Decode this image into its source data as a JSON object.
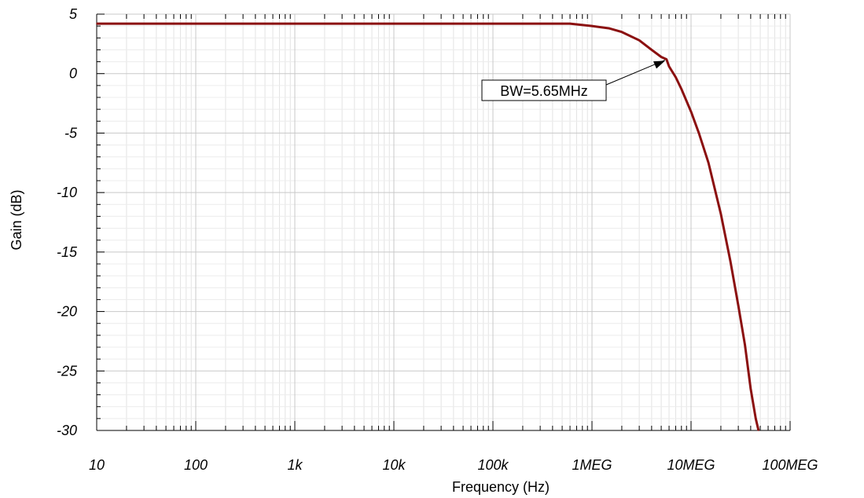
{
  "chart_data": {
    "type": "line",
    "xlabel": "Frequency (Hz)",
    "ylabel": "Gain (dB)",
    "x_scale": "log",
    "xlim": [
      10,
      100000000
    ],
    "ylim": [
      -30,
      5
    ],
    "grid": true,
    "x_ticks": [
      {
        "value": 10,
        "label": "10"
      },
      {
        "value": 100,
        "label": "100"
      },
      {
        "value": 1000,
        "label": "1k"
      },
      {
        "value": 10000,
        "label": "10k"
      },
      {
        "value": 100000,
        "label": "100k"
      },
      {
        "value": 1000000,
        "label": "1MEG"
      },
      {
        "value": 10000000,
        "label": "10MEG"
      },
      {
        "value": 100000000,
        "label": "100MEG"
      }
    ],
    "y_ticks": [
      {
        "value": 5,
        "label": "5"
      },
      {
        "value": 0,
        "label": "0"
      },
      {
        "value": -5,
        "label": "-5"
      },
      {
        "value": -10,
        "label": "-10"
      },
      {
        "value": -15,
        "label": "-15"
      },
      {
        "value": -20,
        "label": "-20"
      },
      {
        "value": -25,
        "label": "-25"
      },
      {
        "value": -30,
        "label": "-30"
      }
    ],
    "series": [
      {
        "color": "#8b1010",
        "points": [
          [
            10,
            4.2
          ],
          [
            100,
            4.2
          ],
          [
            1000,
            4.2
          ],
          [
            10000,
            4.2
          ],
          [
            100000,
            4.2
          ],
          [
            600000,
            4.2
          ],
          [
            1000000,
            4.0
          ],
          [
            1500000,
            3.8
          ],
          [
            2000000,
            3.5
          ],
          [
            3000000,
            2.8
          ],
          [
            4000000,
            2.0
          ],
          [
            5000000,
            1.4
          ],
          [
            5650000,
            1.2
          ],
          [
            6000000,
            0.6
          ],
          [
            7000000,
            -0.3
          ],
          [
            8000000,
            -1.3
          ],
          [
            10000000,
            -3.2
          ],
          [
            12000000,
            -5.0
          ],
          [
            15000000,
            -7.5
          ],
          [
            20000000,
            -11.8
          ],
          [
            25000000,
            -15.8
          ],
          [
            30000000,
            -19.5
          ],
          [
            35000000,
            -22.8
          ],
          [
            40000000,
            -26.5
          ],
          [
            45000000,
            -29.0
          ],
          [
            48000000,
            -30.0
          ]
        ]
      }
    ],
    "annotations": [
      {
        "text": "BW=5.65MHz",
        "x": 5650000,
        "y": 1.2
      }
    ]
  }
}
